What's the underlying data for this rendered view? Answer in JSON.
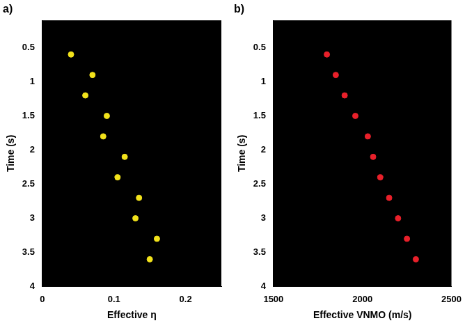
{
  "chart_data": [
    {
      "type": "scatter",
      "title": "a)",
      "x_label": "Effective η",
      "y_label": "Time (s)",
      "xlim": [
        0,
        0.25
      ],
      "xticks": [
        0,
        0.1,
        0.2
      ],
      "ylim": [
        4,
        0.1
      ],
      "yticks": [
        0.5,
        1,
        1.5,
        2,
        2.5,
        3,
        3.5,
        4
      ],
      "grid": false,
      "series": [
        {
          "name": null,
          "color": "#f2e21b",
          "marker": "circle",
          "x": [
            0.04,
            0.07,
            0.06,
            0.09,
            0.085,
            0.115,
            0.105,
            0.135,
            0.13,
            0.16,
            0.15
          ],
          "values": [
            0.6,
            0.9,
            1.2,
            1.5,
            1.8,
            2.1,
            2.4,
            2.7,
            3.0,
            3.3,
            3.6
          ]
        }
      ]
    },
    {
      "type": "scatter",
      "title": "b)",
      "x_label": "Effective VNMO (m/s)",
      "y_label": "Time (s)",
      "xlim": [
        1500,
        2500
      ],
      "xticks": [
        1500,
        2000,
        2500
      ],
      "ylim": [
        4,
        0.1
      ],
      "yticks": [
        0.5,
        1,
        1.5,
        2,
        2.5,
        3,
        3.5,
        4
      ],
      "grid": false,
      "series": [
        {
          "name": null,
          "color": "#e8202a",
          "marker": "circle",
          "x": [
            1800,
            1850,
            1900,
            1960,
            2030,
            2060,
            2100,
            2150,
            2200,
            2250,
            2300
          ],
          "values": [
            0.6,
            0.9,
            1.2,
            1.5,
            1.8,
            2.1,
            2.4,
            2.7,
            3.0,
            3.3,
            3.6
          ]
        }
      ]
    }
  ]
}
